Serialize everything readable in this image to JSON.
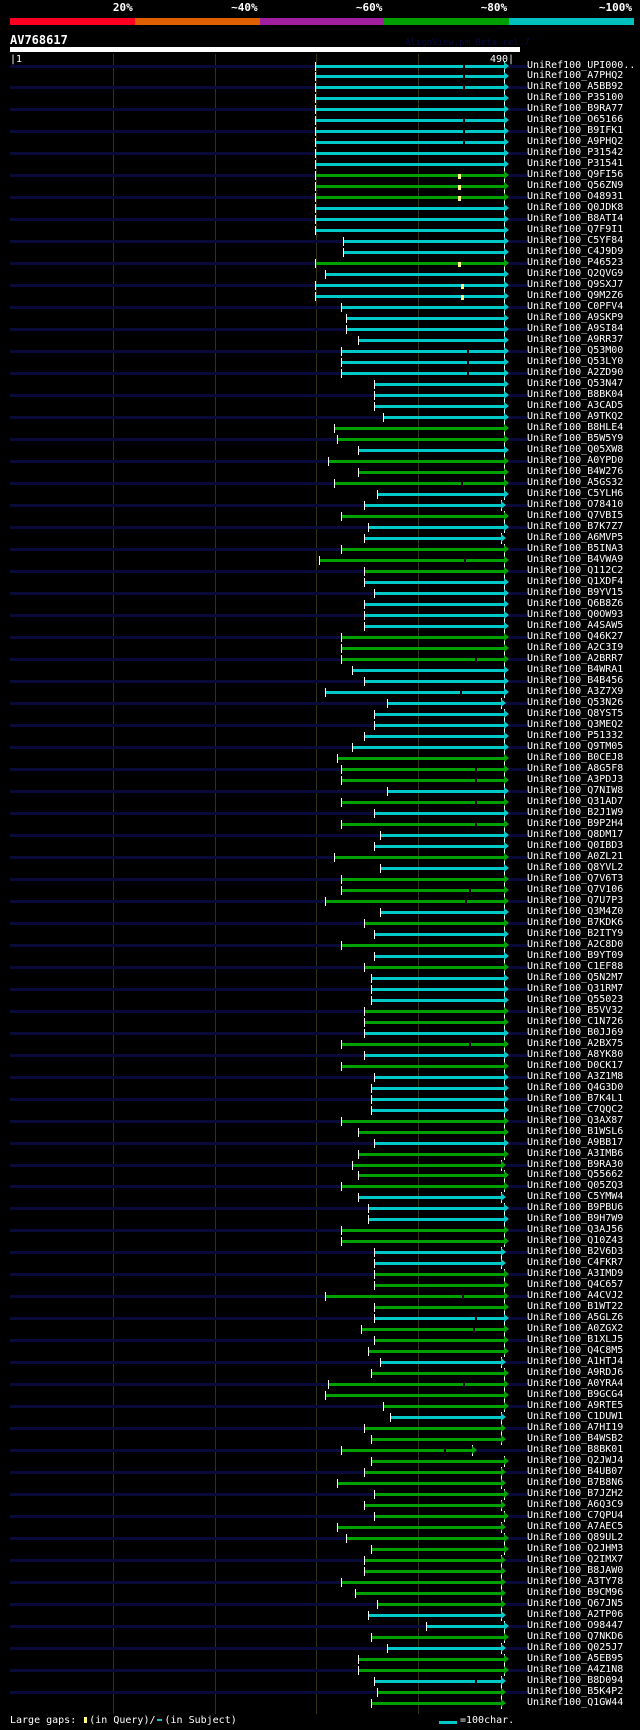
{
  "scale": [
    {
      "label": "20%",
      "color": "#ff0022"
    },
    {
      "label": "~40%",
      "color": "#e06000"
    },
    {
      "label": "~60%",
      "color": "#a020a0"
    },
    {
      "label": "~80%",
      "color": "#00a000"
    },
    {
      "label": "~100%",
      "color": "#00c0c0"
    }
  ],
  "query": {
    "name": "AV768617",
    "start_label": "|1",
    "end_label": "490|",
    "length": 490
  },
  "watermark": "AlignView.pm Beta rel.7",
  "colors": {
    "cyan": "#00c8c8",
    "green": "#00a000",
    "navy": "#0a0a3a",
    "insert": "#ffff88"
  },
  "rows": [
    {
      "label": "UniRef100_UPI000..",
      "s": 299,
      "e": 490,
      "c": "cyan",
      "gap": 444
    },
    {
      "label": "UniRef100_A7PHQ2",
      "s": 299,
      "e": 490,
      "c": "cyan",
      "gap": 444
    },
    {
      "label": "UniRef100_A5BB92",
      "s": 299,
      "e": 490,
      "c": "cyan",
      "gap": 444
    },
    {
      "label": "UniRef100_P35100",
      "s": 299,
      "e": 490,
      "c": "cyan"
    },
    {
      "label": "UniRef100_B9RA77",
      "s": 299,
      "e": 490,
      "c": "cyan"
    },
    {
      "label": "UniRef100_O65166",
      "s": 299,
      "e": 490,
      "c": "cyan",
      "gap": 444
    },
    {
      "label": "UniRef100_B9IFK1",
      "s": 299,
      "e": 490,
      "c": "cyan",
      "gap": 444
    },
    {
      "label": "UniRef100_A9PHQ2",
      "s": 299,
      "e": 490,
      "c": "cyan",
      "gap": 444
    },
    {
      "label": "UniRef100_P31542",
      "s": 299,
      "e": 490,
      "c": "cyan"
    },
    {
      "label": "UniRef100_P31541",
      "s": 299,
      "e": 490,
      "c": "cyan"
    },
    {
      "label": "UniRef100_Q9FI56",
      "s": 299,
      "e": 490,
      "c": "green",
      "ins": 439
    },
    {
      "label": "UniRef100_Q56ZN9",
      "s": 299,
      "e": 490,
      "c": "green",
      "ins": 439
    },
    {
      "label": "UniRef100_O48931",
      "s": 299,
      "e": 490,
      "c": "green",
      "ins": 439
    },
    {
      "label": "UniRef100_Q0JDK8",
      "s": 299,
      "e": 490,
      "c": "cyan"
    },
    {
      "label": "UniRef100_B8ATI4",
      "s": 299,
      "e": 490,
      "c": "cyan"
    },
    {
      "label": "UniRef100_Q7F9I1",
      "s": 299,
      "e": 490,
      "c": "cyan"
    },
    {
      "label": "UniRef100_C5YF84",
      "s": 326,
      "e": 490,
      "c": "cyan"
    },
    {
      "label": "UniRef100_C4J9D9",
      "s": 326,
      "e": 490,
      "c": "cyan"
    },
    {
      "label": "UniRef100_P46523",
      "s": 299,
      "e": 490,
      "c": "green",
      "ins": 439
    },
    {
      "label": "UniRef100_Q2QVG9",
      "s": 308,
      "e": 490,
      "c": "cyan"
    },
    {
      "label": "UniRef100_Q9SXJ7",
      "s": 299,
      "e": 490,
      "c": "cyan",
      "ins": 442
    },
    {
      "label": "UniRef100_Q9M2Z6",
      "s": 299,
      "e": 490,
      "c": "cyan",
      "ins": 442
    },
    {
      "label": "UniRef100_C0PFV4",
      "s": 324,
      "e": 490,
      "c": "cyan"
    },
    {
      "label": "UniRef100_A9SKP9",
      "s": 329,
      "e": 490,
      "c": "cyan"
    },
    {
      "label": "UniRef100_A9SI84",
      "s": 329,
      "e": 490,
      "c": "cyan"
    },
    {
      "label": "UniRef100_A9RR37",
      "s": 341,
      "e": 490,
      "c": "cyan"
    },
    {
      "label": "UniRef100_Q53M00",
      "s": 324,
      "e": 490,
      "c": "cyan",
      "gap": 448
    },
    {
      "label": "UniRef100_Q53LY0",
      "s": 324,
      "e": 490,
      "c": "cyan",
      "gap": 448
    },
    {
      "label": "UniRef100_A2ZD90",
      "s": 324,
      "e": 490,
      "c": "cyan",
      "gap": 448
    },
    {
      "label": "UniRef100_Q53N47",
      "s": 357,
      "e": 490,
      "c": "cyan"
    },
    {
      "label": "UniRef100_B8BK04",
      "s": 357,
      "e": 490,
      "c": "cyan"
    },
    {
      "label": "UniRef100_A3CAD5",
      "s": 357,
      "e": 490,
      "c": "cyan"
    },
    {
      "label": "UniRef100_A9TKQ2",
      "s": 366,
      "e": 490,
      "c": "cyan"
    },
    {
      "label": "UniRef100_B8HLE4",
      "s": 317,
      "e": 490,
      "c": "green"
    },
    {
      "label": "UniRef100_B5W5Y9",
      "s": 320,
      "e": 490,
      "c": "green"
    },
    {
      "label": "UniRef100_Q05XW8",
      "s": 341,
      "e": 490,
      "c": "cyan"
    },
    {
      "label": "UniRef100_A0YPD0",
      "s": 311,
      "e": 490,
      "c": "green"
    },
    {
      "label": "UniRef100_B4W276",
      "s": 341,
      "e": 490,
      "c": "green"
    },
    {
      "label": "UniRef100_A5GS32",
      "s": 317,
      "e": 490,
      "c": "green",
      "gap": 442
    },
    {
      "label": "UniRef100_C5YLH6",
      "s": 360,
      "e": 490,
      "c": "cyan"
    },
    {
      "label": "UniRef100_O78410",
      "s": 347,
      "e": 487,
      "c": "cyan"
    },
    {
      "label": "UniRef100_Q7VBI5",
      "s": 324,
      "e": 490,
      "c": "green"
    },
    {
      "label": "UniRef100_B7K7Z7",
      "s": 351,
      "e": 490,
      "c": "cyan"
    },
    {
      "label": "UniRef100_A6MVP5",
      "s": 347,
      "e": 487,
      "c": "cyan"
    },
    {
      "label": "UniRef100_B5INA3",
      "s": 324,
      "e": 490,
      "c": "green"
    },
    {
      "label": "UniRef100_B4VWA9",
      "s": 302,
      "e": 490,
      "c": "green",
      "gap": 445
    },
    {
      "label": "UniRef100_Q112C2",
      "s": 347,
      "e": 490,
      "c": "green"
    },
    {
      "label": "UniRef100_Q1XDF4",
      "s": 347,
      "e": 490,
      "c": "cyan"
    },
    {
      "label": "UniRef100_B9YV15",
      "s": 357,
      "e": 490,
      "c": "cyan"
    },
    {
      "label": "UniRef100_Q6B8Z6",
      "s": 347,
      "e": 490,
      "c": "cyan"
    },
    {
      "label": "UniRef100_Q0OW93",
      "s": 347,
      "e": 490,
      "c": "cyan"
    },
    {
      "label": "UniRef100_A4SAW5",
      "s": 347,
      "e": 490,
      "c": "cyan"
    },
    {
      "label": "UniRef100_Q46K27",
      "s": 324,
      "e": 490,
      "c": "green"
    },
    {
      "label": "UniRef100_A2C3I9",
      "s": 324,
      "e": 490,
      "c": "green"
    },
    {
      "label": "UniRef100_A2BRR7",
      "s": 324,
      "e": 490,
      "c": "green",
      "gap": 456
    },
    {
      "label": "UniRef100_B4WRA1",
      "s": 335,
      "e": 490,
      "c": "cyan"
    },
    {
      "label": "UniRef100_B4B456",
      "s": 347,
      "e": 490,
      "c": "cyan"
    },
    {
      "label": "UniRef100_A3Z7X9",
      "s": 308,
      "e": 490,
      "c": "cyan",
      "gap": 441
    },
    {
      "label": "UniRef100_Q53N26",
      "s": 369,
      "e": 487,
      "c": "cyan"
    },
    {
      "label": "UniRef100_Q8YST5",
      "s": 357,
      "e": 490,
      "c": "cyan"
    },
    {
      "label": "UniRef100_Q3MEQ2",
      "s": 357,
      "e": 490,
      "c": "cyan"
    },
    {
      "label": "UniRef100_P51332",
      "s": 347,
      "e": 490,
      "c": "cyan"
    },
    {
      "label": "UniRef100_Q9TM05",
      "s": 335,
      "e": 490,
      "c": "cyan"
    },
    {
      "label": "UniRef100_B0CEJ8",
      "s": 320,
      "e": 490,
      "c": "green"
    },
    {
      "label": "UniRef100_A8G5F8",
      "s": 324,
      "e": 490,
      "c": "green",
      "gap": 456
    },
    {
      "label": "UniRef100_A3PDJ3",
      "s": 324,
      "e": 490,
      "c": "green",
      "gap": 456
    },
    {
      "label": "UniRef100_Q7NIW8",
      "s": 369,
      "e": 490,
      "c": "cyan"
    },
    {
      "label": "UniRef100_Q31AD7",
      "s": 324,
      "e": 490,
      "c": "green",
      "gap": 456
    },
    {
      "label": "UniRef100_B2J1W9",
      "s": 357,
      "e": 490,
      "c": "cyan"
    },
    {
      "label": "UniRef100_B9P2H4",
      "s": 324,
      "e": 490,
      "c": "green",
      "gap": 456
    },
    {
      "label": "UniRef100_Q8DM17",
      "s": 363,
      "e": 490,
      "c": "cyan"
    },
    {
      "label": "UniRef100_Q0IBD3",
      "s": 357,
      "e": 490,
      "c": "cyan"
    },
    {
      "label": "UniRef100_A0ZL21",
      "s": 317,
      "e": 490,
      "c": "green"
    },
    {
      "label": "UniRef100_Q8YVL2",
      "s": 363,
      "e": 490,
      "c": "cyan"
    },
    {
      "label": "UniRef100_Q7V6T3",
      "s": 324,
      "e": 490,
      "c": "green"
    },
    {
      "label": "UniRef100_Q7V106",
      "s": 324,
      "e": 490,
      "c": "green",
      "gap": 450
    },
    {
      "label": "UniRef100_Q7U7P3",
      "s": 308,
      "e": 490,
      "c": "green",
      "gap": 446
    },
    {
      "label": "UniRef100_Q3M4Z0",
      "s": 363,
      "e": 490,
      "c": "cyan"
    },
    {
      "label": "UniRef100_B7KDK6",
      "s": 347,
      "e": 490,
      "c": "green"
    },
    {
      "label": "UniRef100_B2ITY9",
      "s": 357,
      "e": 490,
      "c": "cyan"
    },
    {
      "label": "UniRef100_A2C8D0",
      "s": 324,
      "e": 490,
      "c": "green"
    },
    {
      "label": "UniRef100_B9YT09",
      "s": 357,
      "e": 490,
      "c": "cyan"
    },
    {
      "label": "UniRef100_C1EF88",
      "s": 347,
      "e": 490,
      "c": "green"
    },
    {
      "label": "UniRef100_Q5N2M7",
      "s": 354,
      "e": 490,
      "c": "cyan"
    },
    {
      "label": "UniRef100_Q31RM7",
      "s": 354,
      "e": 490,
      "c": "cyan"
    },
    {
      "label": "UniRef100_Q55023",
      "s": 354,
      "e": 490,
      "c": "cyan"
    },
    {
      "label": "UniRef100_B5VV32",
      "s": 347,
      "e": 490,
      "c": "green"
    },
    {
      "label": "UniRef100_C1N726",
      "s": 347,
      "e": 490,
      "c": "green"
    },
    {
      "label": "UniRef100_B0JJ69",
      "s": 347,
      "e": 490,
      "c": "cyan"
    },
    {
      "label": "UniRef100_A2BX75",
      "s": 324,
      "e": 490,
      "c": "green",
      "gap": 450
    },
    {
      "label": "UniRef100_A8YK80",
      "s": 347,
      "e": 490,
      "c": "cyan"
    },
    {
      "label": "UniRef100_D0CK17",
      "s": 324,
      "e": 490,
      "c": "green"
    },
    {
      "label": "UniRef100_A3Z1M8",
      "s": 357,
      "e": 490,
      "c": "cyan"
    },
    {
      "label": "UniRef100_Q4G3D0",
      "s": 354,
      "e": 490,
      "c": "cyan"
    },
    {
      "label": "UniRef100_B7K4L1",
      "s": 354,
      "e": 490,
      "c": "cyan"
    },
    {
      "label": "UniRef100_C7QQC2",
      "s": 354,
      "e": 490,
      "c": "cyan"
    },
    {
      "label": "UniRef100_Q3AX87",
      "s": 324,
      "e": 490,
      "c": "green"
    },
    {
      "label": "UniRef100_B1WSL6",
      "s": 341,
      "e": 490,
      "c": "green"
    },
    {
      "label": "UniRef100_A9BB17",
      "s": 357,
      "e": 490,
      "c": "cyan"
    },
    {
      "label": "UniRef100_A3IMB6",
      "s": 341,
      "e": 490,
      "c": "green"
    },
    {
      "label": "UniRef100_B9RA30",
      "s": 335,
      "e": 487,
      "c": "green"
    },
    {
      "label": "UniRef100_Q55662",
      "s": 341,
      "e": 490,
      "c": "green"
    },
    {
      "label": "UniRef100_Q05ZQ3",
      "s": 324,
      "e": 490,
      "c": "green"
    },
    {
      "label": "UniRef100_C5YMW4",
      "s": 341,
      "e": 487,
      "c": "cyan"
    },
    {
      "label": "UniRef100_B9PBU6",
      "s": 351,
      "e": 490,
      "c": "cyan"
    },
    {
      "label": "UniRef100_B9H7W9",
      "s": 351,
      "e": 490,
      "c": "cyan"
    },
    {
      "label": "UniRef100_Q3AJ56",
      "s": 324,
      "e": 490,
      "c": "green"
    },
    {
      "label": "UniRef100_Q10Z43",
      "s": 324,
      "e": 490,
      "c": "green"
    },
    {
      "label": "UniRef100_B2V6D3",
      "s": 357,
      "e": 487,
      "c": "cyan"
    },
    {
      "label": "UniRef100_C4FKR7",
      "s": 357,
      "e": 487,
      "c": "cyan"
    },
    {
      "label": "UniRef100_A3IMD9",
      "s": 357,
      "e": 490,
      "c": "green"
    },
    {
      "label": "UniRef100_Q4C657",
      "s": 357,
      "e": 490,
      "c": "green"
    },
    {
      "label": "UniRef100_A4CVJ2",
      "s": 308,
      "e": 490,
      "c": "green",
      "gap": 443
    },
    {
      "label": "UniRef100_B1WT22",
      "s": 357,
      "e": 490,
      "c": "green"
    },
    {
      "label": "UniRef100_A5GLZ6",
      "s": 357,
      "e": 490,
      "c": "cyan",
      "gap": 456
    },
    {
      "label": "UniRef100_A0ZGX2",
      "s": 344,
      "e": 490,
      "c": "green",
      "gap": 454
    },
    {
      "label": "UniRef100_B1XLJ5",
      "s": 357,
      "e": 490,
      "c": "green"
    },
    {
      "label": "UniRef100_Q4C8M5",
      "s": 351,
      "e": 490,
      "c": "green"
    },
    {
      "label": "UniRef100_A1HTJ4",
      "s": 363,
      "e": 487,
      "c": "cyan"
    },
    {
      "label": "UniRef100_A9RDJ6",
      "s": 354,
      "e": 490,
      "c": "green"
    },
    {
      "label": "UniRef100_A0YRA4",
      "s": 311,
      "e": 490,
      "c": "green",
      "gap": 444
    },
    {
      "label": "UniRef100_B9GCG4",
      "s": 308,
      "e": 490,
      "c": "green"
    },
    {
      "label": "UniRef100_A9RTE5",
      "s": 366,
      "e": 490,
      "c": "green"
    },
    {
      "label": "UniRef100_C1DUW1",
      "s": 372,
      "e": 487,
      "c": "cyan"
    },
    {
      "label": "UniRef100_A7HI19",
      "s": 347,
      "e": 487,
      "c": "green"
    },
    {
      "label": "UniRef100_B4WSB2",
      "s": 354,
      "e": 487,
      "c": "green"
    },
    {
      "label": "UniRef100_B8BK01",
      "s": 324,
      "e": 458,
      "c": "green",
      "gap": 426
    },
    {
      "label": "UniRef100_Q2JWJ4",
      "s": 354,
      "e": 490,
      "c": "green"
    },
    {
      "label": "UniRef100_B4UB07",
      "s": 347,
      "e": 487,
      "c": "green"
    },
    {
      "label": "UniRef100_B7B8N6",
      "s": 320,
      "e": 487,
      "c": "green"
    },
    {
      "label": "UniRef100_B7JZH2",
      "s": 357,
      "e": 490,
      "c": "green"
    },
    {
      "label": "UniRef100_A6Q3C9",
      "s": 347,
      "e": 487,
      "c": "green"
    },
    {
      "label": "UniRef100_C7QPU4",
      "s": 357,
      "e": 490,
      "c": "green"
    },
    {
      "label": "UniRef100_A7AEC5",
      "s": 320,
      "e": 487,
      "c": "green"
    },
    {
      "label": "UniRef100_Q89UL2",
      "s": 329,
      "e": 490,
      "c": "green"
    },
    {
      "label": "UniRef100_Q2JHM3",
      "s": 354,
      "e": 490,
      "c": "green"
    },
    {
      "label": "UniRef100_Q2IMX7",
      "s": 347,
      "e": 487,
      "c": "green"
    },
    {
      "label": "UniRef100_B8JAW0",
      "s": 347,
      "e": 487,
      "c": "green"
    },
    {
      "label": "UniRef100_A3TY78",
      "s": 324,
      "e": 487,
      "c": "green"
    },
    {
      "label": "UniRef100_B9CM96",
      "s": 338,
      "e": 487,
      "c": "green"
    },
    {
      "label": "UniRef100_Q67JN5",
      "s": 360,
      "e": 487,
      "c": "green"
    },
    {
      "label": "UniRef100_A2TP06",
      "s": 351,
      "e": 487,
      "c": "cyan"
    },
    {
      "label": "UniRef100_O98447",
      "s": 408,
      "e": 490,
      "c": "cyan"
    },
    {
      "label": "UniRef100_Q7NKD6",
      "s": 354,
      "e": 490,
      "c": "green"
    },
    {
      "label": "UniRef100_Q025J7",
      "s": 369,
      "e": 487,
      "c": "cyan"
    },
    {
      "label": "UniRef100_A5EB95",
      "s": 341,
      "e": 490,
      "c": "green"
    },
    {
      "label": "UniRef100_A4Z1N8",
      "s": 341,
      "e": 490,
      "c": "green"
    },
    {
      "label": "UniRef100_B8D094",
      "s": 357,
      "e": 487,
      "c": "cyan",
      "gap": 456
    },
    {
      "label": "UniRef100_B5K4P2",
      "s": 360,
      "e": 487,
      "c": "green"
    },
    {
      "label": "UniRef100_Q1GW44",
      "s": 354,
      "e": 487,
      "c": "green"
    }
  ],
  "footer": {
    "prefix": "Large gaps:",
    "query_text": "(in Query)/",
    "subject_text": "(in Subject)",
    "legend_text": "=100char."
  }
}
